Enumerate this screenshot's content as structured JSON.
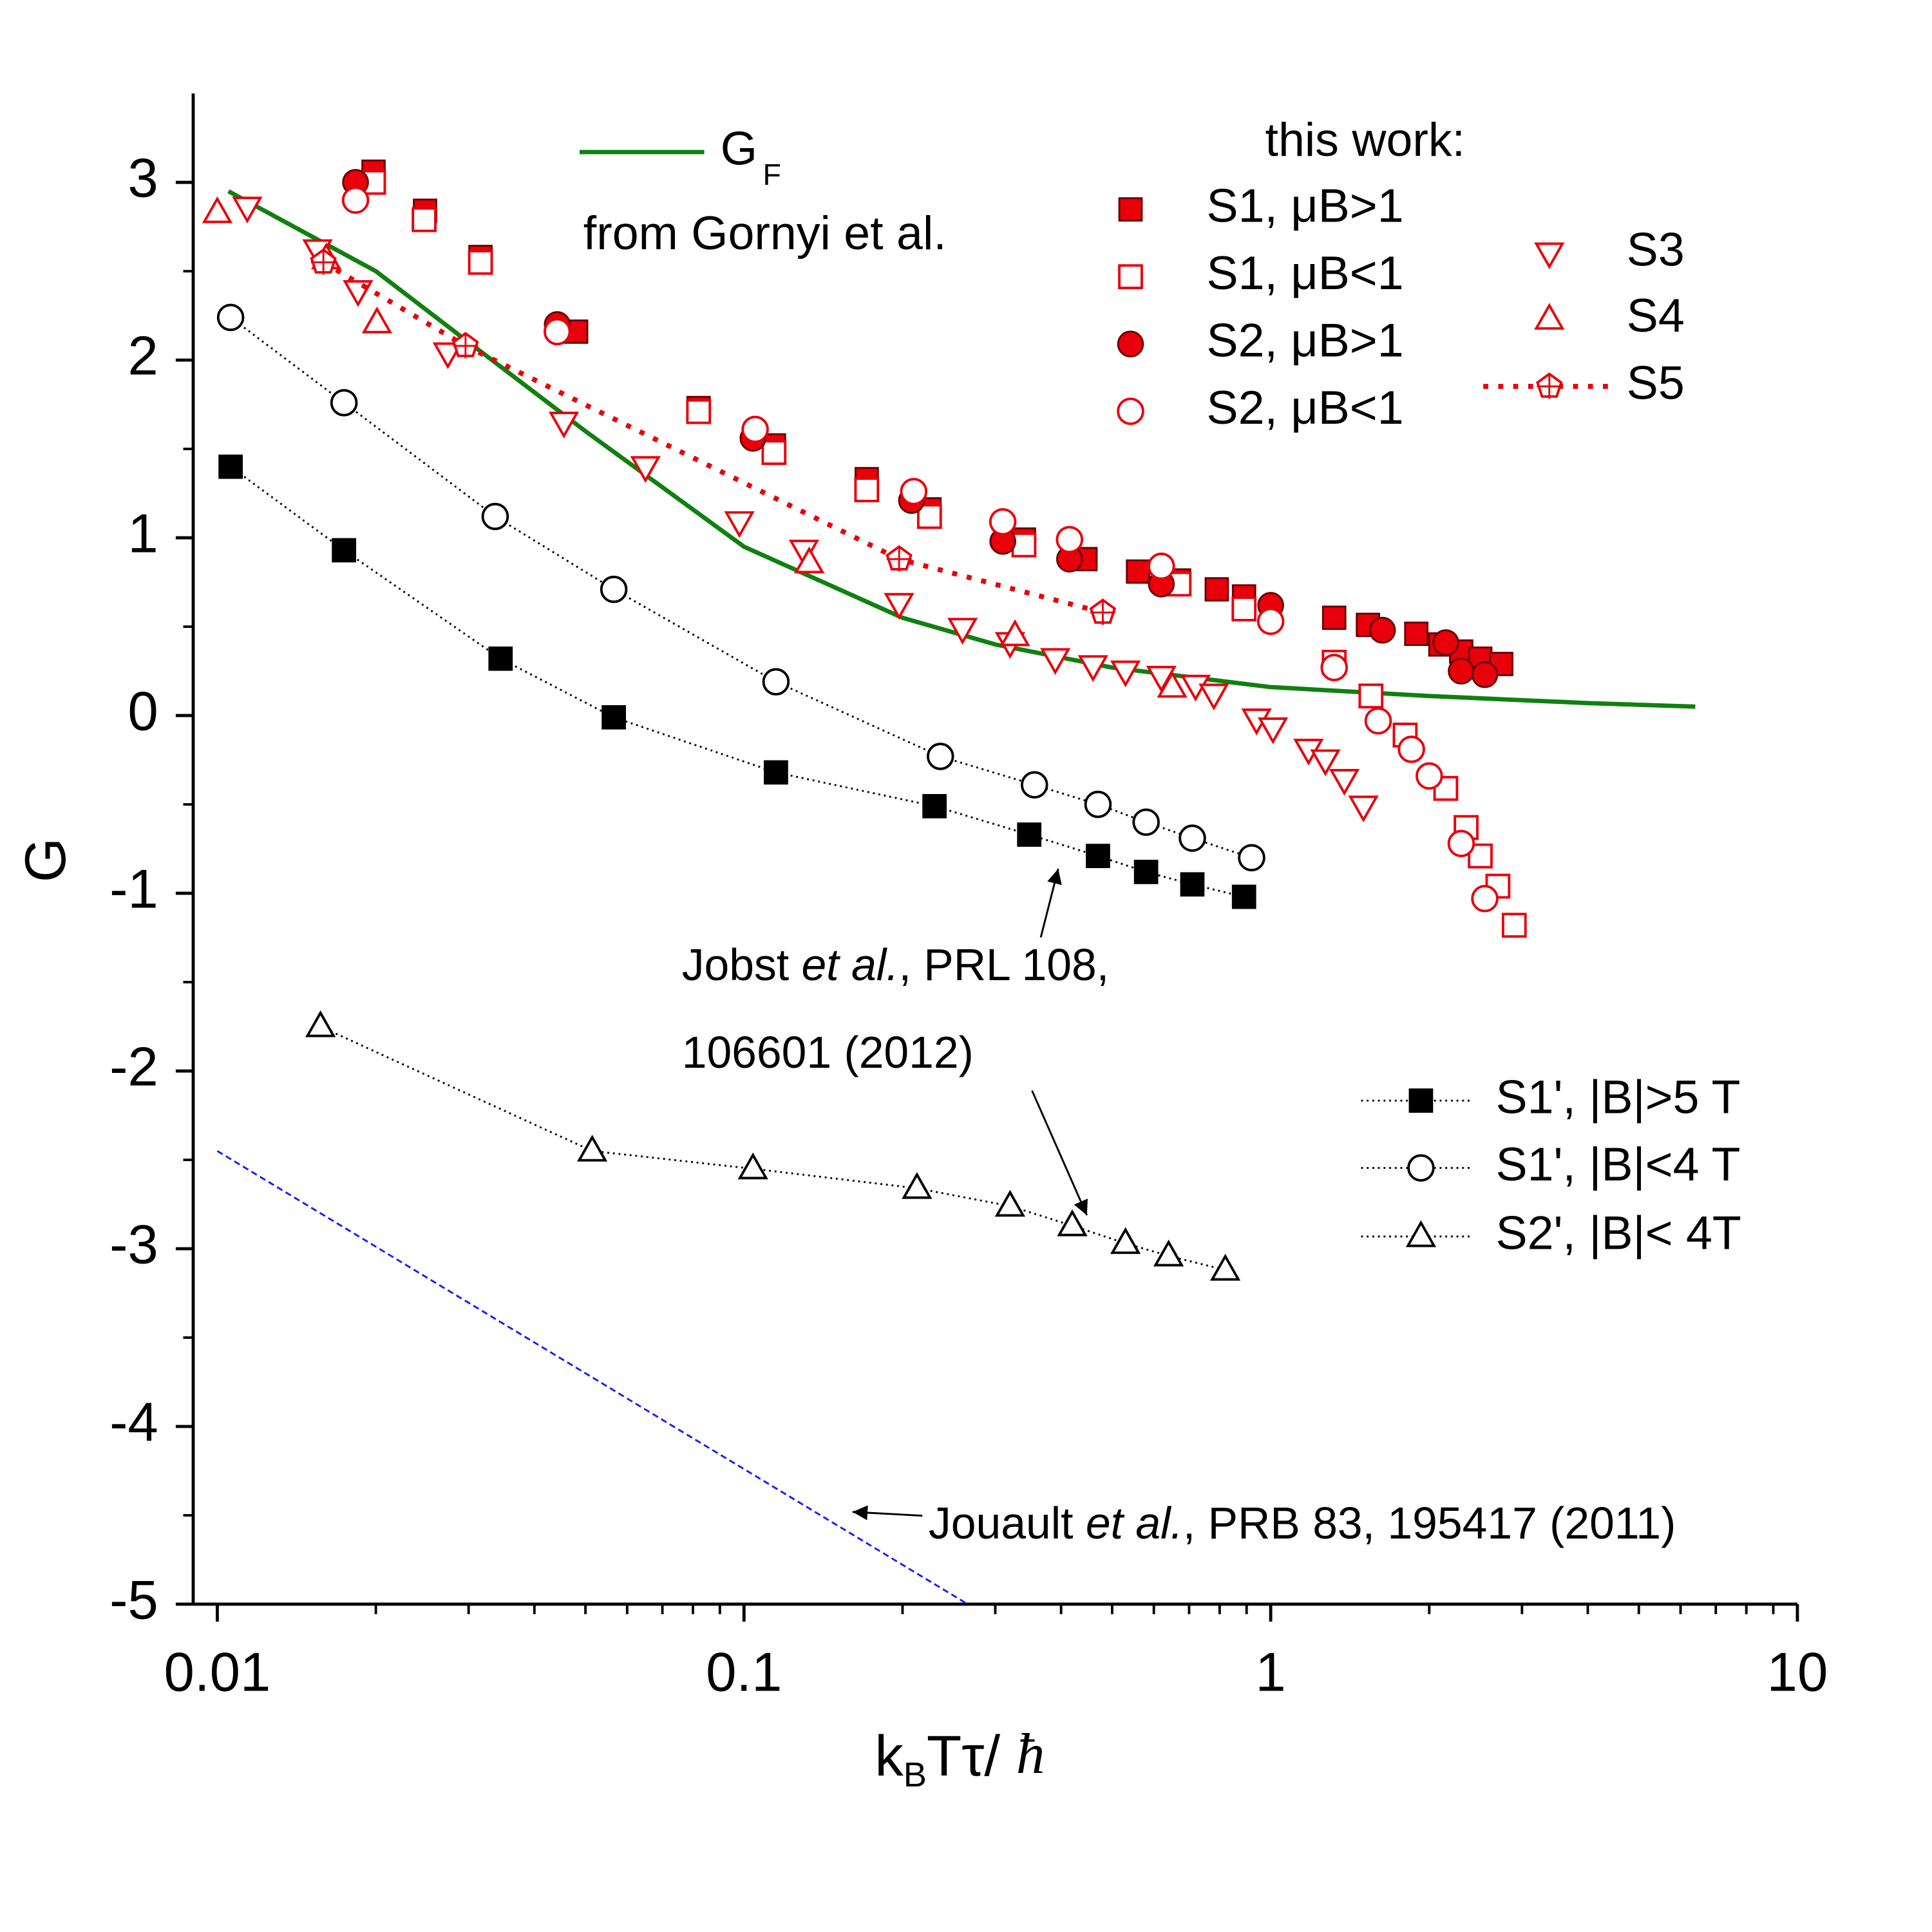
{
  "chart_data": {
    "type": "scatter",
    "xscale": "log",
    "xlabel": {
      "parts": [
        "k",
        "B",
        "Tτ/ ",
        "ħ"
      ]
    },
    "ylabel": "G",
    "xlim": [
      0.009,
      10
    ],
    "ylim": [
      -5,
      3.5
    ],
    "xticks": [
      0.01,
      0.1,
      1,
      10
    ],
    "xminorticks": [
      0.02,
      0.03,
      0.04,
      0.05,
      0.06,
      0.07,
      0.08,
      0.09,
      0.2,
      0.3,
      0.4,
      0.5,
      0.6,
      0.7,
      0.8,
      0.9,
      2,
      3,
      4,
      5,
      6,
      7,
      8,
      9
    ],
    "yticks": [
      -5,
      -4,
      -3,
      -2,
      -1,
      0,
      1,
      2,
      3
    ],
    "yminorticks": [
      -4.5,
      -3.5,
      -2.5,
      -1.5,
      -0.5,
      0.5,
      1.5,
      2.5
    ],
    "legend_notes": [
      "from Gornyi et al.",
      "this work:"
    ],
    "series": [
      {
        "name": "G",
        "name_sub": "F",
        "color": "#108010",
        "marker": "none",
        "line": "solid",
        "x": [
          0.0105,
          0.02,
          0.03,
          0.05,
          0.1,
          0.2,
          0.3,
          0.5,
          1,
          2,
          4,
          6.4
        ],
        "values": [
          2.95,
          2.5,
          2.1,
          1.6,
          0.95,
          0.55,
          0.4,
          0.27,
          0.16,
          0.11,
          0.07,
          0.05
        ]
      },
      {
        "name": "S1, μB>1",
        "color": "#e8000a",
        "marker": "square",
        "filled": true,
        "line": "none",
        "x": [
          0.0198,
          0.0248,
          0.0316,
          0.048,
          0.082,
          0.114,
          0.171,
          0.225,
          0.34,
          0.445,
          0.56,
          0.67,
          0.79,
          0.89,
          1.32,
          1.53,
          1.89,
          2.1,
          2.3,
          2.5,
          2.74
        ],
        "values": [
          3.06,
          2.84,
          2.58,
          2.16,
          1.73,
          1.52,
          1.33,
          1.16,
          0.99,
          0.88,
          0.81,
          0.76,
          0.71,
          0.67,
          0.55,
          0.51,
          0.46,
          0.4,
          0.36,
          0.32,
          0.29
        ]
      },
      {
        "name": "S1, μB<1",
        "color": "#e8000a",
        "marker": "square",
        "filled": false,
        "line": "none",
        "x": [
          0.0198,
          0.0247,
          0.0316,
          0.082,
          0.114,
          0.171,
          0.225,
          0.34,
          0.67,
          0.89,
          1.32,
          1.55,
          1.8,
          2.15,
          2.35,
          2.5,
          2.7,
          2.9
        ],
        "values": [
          3.0,
          2.79,
          2.55,
          1.71,
          1.48,
          1.27,
          1.12,
          0.96,
          0.74,
          0.6,
          0.3,
          0.11,
          -0.11,
          -0.41,
          -0.63,
          -0.79,
          -0.96,
          -1.18
        ]
      },
      {
        "name": "S2, μB>1",
        "color": "#e8000a",
        "marker": "circle",
        "filled": true,
        "line": "none",
        "x": [
          0.0183,
          0.0442,
          0.104,
          0.208,
          0.31,
          0.415,
          0.62,
          1.0,
          1.63,
          2.15,
          2.3,
          2.55
        ],
        "values": [
          3.0,
          2.2,
          1.56,
          1.21,
          0.98,
          0.88,
          0.74,
          0.62,
          0.48,
          0.41,
          0.25,
          0.23
        ]
      },
      {
        "name": "S2, μB<1",
        "color": "#e8000a",
        "marker": "circle",
        "filled": false,
        "line": "none",
        "x": [
          0.0183,
          0.0442,
          0.105,
          0.21,
          0.31,
          0.415,
          0.62,
          1.0,
          1.32,
          1.6,
          1.85,
          2.0,
          2.3,
          2.55
        ],
        "values": [
          2.9,
          2.16,
          1.61,
          1.26,
          1.09,
          0.99,
          0.84,
          0.53,
          0.27,
          -0.03,
          -0.19,
          -0.34,
          -0.72,
          -1.03
        ]
      },
      {
        "name": "S3",
        "color": "#e8000a",
        "marker": "tri-down",
        "filled": false,
        "line": "none",
        "x": [
          0.0114,
          0.0155,
          0.0185,
          0.0274,
          0.0455,
          0.065,
          0.098,
          0.13,
          0.197,
          0.26,
          0.32,
          0.39,
          0.46,
          0.53,
          0.62,
          0.72,
          0.78,
          0.94,
          1.01,
          1.18,
          1.27,
          1.38,
          1.5
        ],
        "values": [
          2.86,
          2.62,
          2.39,
          2.04,
          1.65,
          1.4,
          1.09,
          0.93,
          0.63,
          0.49,
          0.41,
          0.32,
          0.28,
          0.25,
          0.22,
          0.17,
          0.12,
          -0.02,
          -0.07,
          -0.19,
          -0.25,
          -0.36,
          -0.51
        ]
      },
      {
        "name": "S4",
        "color": "#e8000a",
        "marker": "tri-up",
        "filled": false,
        "line": "none",
        "x": [
          0.01,
          0.0161,
          0.0201,
          0.133,
          0.327,
          0.65
        ],
        "values": [
          2.83,
          2.57,
          2.21,
          0.86,
          0.45,
          0.16
        ]
      },
      {
        "name": "S5",
        "color": "#e8000a",
        "marker": "pentagon",
        "filled": false,
        "line": "dotted-thick",
        "x": [
          0.0159,
          0.0296,
          0.197,
          0.48
        ],
        "values": [
          2.55,
          2.08,
          0.88,
          0.58
        ]
      },
      {
        "name": "S1', |B|>5 T",
        "color": "#000000",
        "marker": "square",
        "filled": true,
        "line": "dotted",
        "x": [
          0.0106,
          0.0174,
          0.0345,
          0.0566,
          0.115,
          0.23,
          0.348,
          0.47,
          0.58,
          0.71,
          0.89
        ],
        "values": [
          1.4,
          0.93,
          0.32,
          -0.01,
          -0.32,
          -0.51,
          -0.67,
          -0.79,
          -0.88,
          -0.95,
          -1.02
        ]
      },
      {
        "name": "S1', |B|<4 T",
        "color": "#000000",
        "marker": "circle",
        "filled": false,
        "line": "dotted",
        "x": [
          0.0106,
          0.0174,
          0.0337,
          0.0566,
          0.115,
          0.236,
          0.356,
          0.47,
          0.58,
          0.71,
          0.92
        ],
        "values": [
          2.24,
          1.76,
          1.12,
          0.71,
          0.19,
          -0.23,
          -0.39,
          -0.5,
          -0.6,
          -0.69,
          -0.8
        ]
      },
      {
        "name": "S2', |B|< 4T",
        "color": "#000000",
        "marker": "tri-up",
        "filled": false,
        "line": "dotted",
        "x": [
          0.0157,
          0.0515,
          0.104,
          0.213,
          0.32,
          0.42,
          0.53,
          0.64,
          0.82
        ],
        "values": [
          -1.75,
          -2.45,
          -2.55,
          -2.66,
          -2.76,
          -2.87,
          -2.97,
          -3.04,
          -3.12
        ]
      },
      {
        "color": "#1a1aff",
        "marker": "none",
        "line": "dashed",
        "x": [
          0.01,
          0.266
        ],
        "values": [
          -2.45,
          -5.0
        ]
      }
    ],
    "annotations": [
      {
        "parts": [
          "Jobst ",
          "et al.",
          ", PRL 108,"
        ],
        "line2": "106601 (2012)"
      },
      {
        "parts": [
          "Jouault ",
          "et al.",
          ", PRB 83, 195417 (2011)"
        ]
      }
    ]
  }
}
